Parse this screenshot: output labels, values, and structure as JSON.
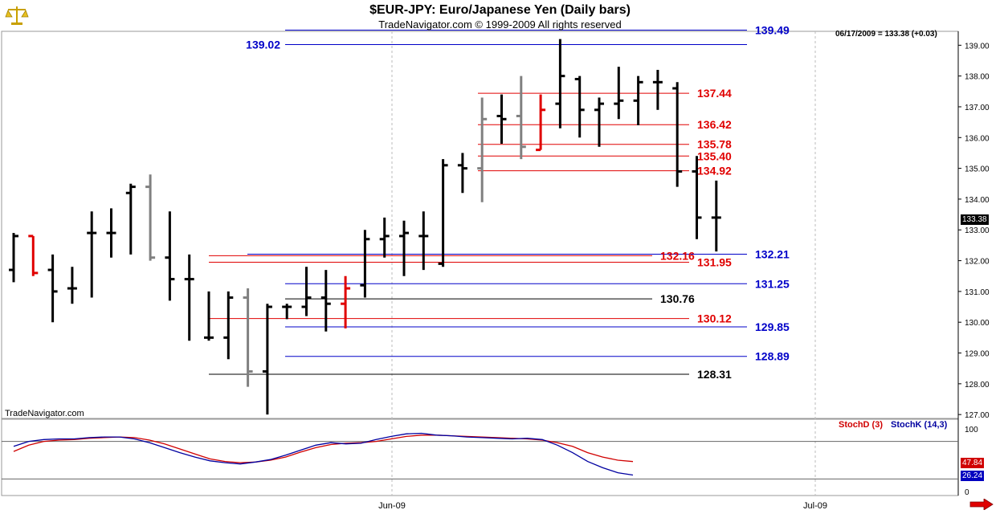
{
  "header": {
    "title": "$EUR-JPY:  Euro/Japanese Yen  (Daily bars)",
    "subtitle": "TradeNavigator.com © 1999-2009 All rights reserved"
  },
  "brand_label": "TradeNavigator.com",
  "last_readout": "06/17/2009 = 133.38 (+0.03)",
  "last_price_tag": "133.38",
  "stoch_d_tag": "47.84",
  "stoch_k_tag": "26.24",
  "legend": {
    "stoch_d": "StochD (3)",
    "stoch_k": "StochK (14,3)"
  },
  "colors": {
    "up_down_bar": "#000000",
    "red_bar": "#e00000",
    "gray_bar": "#808080",
    "blue_level": "#0000c8",
    "red_level": "#e00000",
    "black_level": "#000000",
    "stoch_d": "#d00000",
    "stoch_k": "#0000a0"
  },
  "icons": {
    "logo": "gold-scales-icon",
    "next": "right-arrow-icon"
  },
  "chart_data": [
    {
      "type": "ohlc",
      "ylim": [
        126.9,
        139.4
      ],
      "y_ticks": [
        "127.00",
        "128.00",
        "129.00",
        "130.00",
        "131.00",
        "132.00",
        "133.00",
        "134.00",
        "135.00",
        "136.00",
        "137.00",
        "138.00",
        "139.00"
      ],
      "x_labels": [
        "Jun-09",
        "Jul-09"
      ],
      "grid": "vertical dashed at month starts",
      "bars": [
        {
          "o": 131.7,
          "h": 132.9,
          "l": 131.3,
          "c": 132.8,
          "color": "black"
        },
        {
          "o": 132.8,
          "h": 132.8,
          "l": 131.5,
          "c": 131.6,
          "color": "red"
        },
        {
          "o": 131.7,
          "h": 132.2,
          "l": 130.0,
          "c": 131.0,
          "color": "black"
        },
        {
          "o": 131.1,
          "h": 131.8,
          "l": 130.6,
          "c": 131.1,
          "color": "black"
        },
        {
          "o": 132.9,
          "h": 133.6,
          "l": 130.8,
          "c": 132.9,
          "color": "black"
        },
        {
          "o": 132.9,
          "h": 133.7,
          "l": 132.1,
          "c": 132.9,
          "color": "black"
        },
        {
          "o": 134.2,
          "h": 134.5,
          "l": 132.2,
          "c": 134.4,
          "color": "black"
        },
        {
          "o": 134.4,
          "h": 134.8,
          "l": 132.0,
          "c": 132.1,
          "color": "gray"
        },
        {
          "o": 132.1,
          "h": 133.6,
          "l": 130.7,
          "c": 131.4,
          "color": "black"
        },
        {
          "o": 131.4,
          "h": 132.2,
          "l": 129.4,
          "c": 131.4,
          "color": "black"
        },
        {
          "o": 129.5,
          "h": 131.0,
          "l": 129.4,
          "c": 129.5,
          "color": "black"
        },
        {
          "o": 129.5,
          "h": 131.0,
          "l": 128.8,
          "c": 130.8,
          "color": "black"
        },
        {
          "o": 130.8,
          "h": 131.1,
          "l": 127.9,
          "c": 128.4,
          "color": "gray"
        },
        {
          "o": 128.4,
          "h": 130.6,
          "l": 127.0,
          "c": 130.5,
          "color": "black"
        },
        {
          "o": 130.5,
          "h": 130.6,
          "l": 130.1,
          "c": 130.5,
          "color": "black"
        },
        {
          "o": 130.5,
          "h": 131.8,
          "l": 130.2,
          "c": 130.8,
          "color": "black"
        },
        {
          "o": 130.8,
          "h": 131.7,
          "l": 129.7,
          "c": 130.6,
          "color": "black"
        },
        {
          "o": 130.6,
          "h": 131.5,
          "l": 129.8,
          "c": 131.1,
          "color": "red"
        },
        {
          "o": 131.2,
          "h": 133.0,
          "l": 130.8,
          "c": 132.7,
          "color": "black"
        },
        {
          "o": 132.7,
          "h": 133.4,
          "l": 132.1,
          "c": 132.8,
          "color": "black"
        },
        {
          "o": 132.8,
          "h": 133.3,
          "l": 131.5,
          "c": 132.9,
          "color": "black"
        },
        {
          "o": 132.8,
          "h": 133.6,
          "l": 131.7,
          "c": 132.8,
          "color": "black"
        },
        {
          "o": 131.9,
          "h": 135.3,
          "l": 131.8,
          "c": 135.1,
          "color": "black"
        },
        {
          "o": 135.1,
          "h": 135.5,
          "l": 134.2,
          "c": 135.0,
          "color": "black"
        },
        {
          "o": 135.0,
          "h": 137.3,
          "l": 133.9,
          "c": 136.6,
          "color": "gray"
        },
        {
          "o": 136.7,
          "h": 137.4,
          "l": 135.8,
          "c": 136.6,
          "color": "black"
        },
        {
          "o": 136.7,
          "h": 138.0,
          "l": 135.3,
          "c": 135.7,
          "color": "gray"
        },
        {
          "o": 135.6,
          "h": 137.4,
          "l": 135.6,
          "c": 136.9,
          "color": "red"
        },
        {
          "o": 137.1,
          "h": 139.2,
          "l": 136.3,
          "c": 138.0,
          "color": "black"
        },
        {
          "o": 137.9,
          "h": 138.0,
          "l": 136.0,
          "c": 136.9,
          "color": "black"
        },
        {
          "o": 136.9,
          "h": 137.3,
          "l": 135.7,
          "c": 137.1,
          "color": "black"
        },
        {
          "o": 137.1,
          "h": 138.3,
          "l": 136.6,
          "c": 137.2,
          "color": "black"
        },
        {
          "o": 137.2,
          "h": 138.0,
          "l": 136.4,
          "c": 137.8,
          "color": "black"
        },
        {
          "o": 137.8,
          "h": 138.2,
          "l": 136.9,
          "c": 137.8,
          "color": "black"
        },
        {
          "o": 137.6,
          "h": 137.8,
          "l": 134.4,
          "c": 134.9,
          "color": "black"
        },
        {
          "o": 134.9,
          "h": 135.4,
          "l": 132.7,
          "c": 133.4,
          "color": "black"
        },
        {
          "o": 133.4,
          "h": 134.6,
          "l": 132.3,
          "c": 133.4,
          "color": "black"
        }
      ],
      "levels": [
        {
          "value": 139.49,
          "label": "139.49",
          "color": "blue",
          "label_side": "right"
        },
        {
          "value": 139.02,
          "label": "139.02",
          "color": "blue",
          "label_side": "left"
        },
        {
          "value": 137.44,
          "label": "137.44",
          "color": "red",
          "label_side": "right"
        },
        {
          "value": 136.42,
          "label": "136.42",
          "color": "red",
          "label_side": "right"
        },
        {
          "value": 135.78,
          "label": "135.78",
          "color": "red",
          "label_side": "right"
        },
        {
          "value": 135.4,
          "label": "135.40",
          "color": "red",
          "label_side": "right"
        },
        {
          "value": 134.92,
          "label": "134.92",
          "color": "red",
          "label_side": "right"
        },
        {
          "value": 132.21,
          "label": "132.21",
          "color": "blue",
          "label_side": "right"
        },
        {
          "value": 132.16,
          "label": "132.16",
          "color": "red",
          "label_side": "right"
        },
        {
          "value": 131.95,
          "label": "131.95",
          "color": "red",
          "label_side": "right"
        },
        {
          "value": 131.25,
          "label": "131.25",
          "color": "blue",
          "label_side": "right"
        },
        {
          "value": 130.76,
          "label": "130.76",
          "color": "black",
          "label_side": "right"
        },
        {
          "value": 130.12,
          "label": "130.12",
          "color": "red",
          "label_side": "right"
        },
        {
          "value": 129.85,
          "label": "129.85",
          "color": "blue",
          "label_side": "right"
        },
        {
          "value": 128.89,
          "label": "128.89",
          "color": "blue",
          "label_side": "right"
        },
        {
          "value": 128.31,
          "label": "128.31",
          "color": "black",
          "label_side": "right"
        }
      ]
    },
    {
      "type": "line",
      "title": "",
      "ylim": [
        0,
        100
      ],
      "y_ticks": [
        "100",
        "0"
      ],
      "reference_lines": [
        80,
        20
      ],
      "series": [
        {
          "name": "StochD (3)",
          "color": "#d00000",
          "values": [
            64,
            74,
            80,
            82,
            83,
            85,
            86,
            87,
            86,
            82,
            76,
            68,
            60,
            52,
            48,
            46,
            47,
            50,
            55,
            63,
            70,
            75,
            77,
            78,
            80,
            84,
            88,
            90,
            90,
            89,
            88,
            87,
            86,
            85,
            84,
            82,
            78,
            72,
            62,
            55,
            50,
            47.84
          ]
        },
        {
          "name": "StochK (14,3)",
          "color": "#0000a0",
          "values": [
            72,
            80,
            83,
            84,
            84,
            86,
            87,
            87,
            84,
            78,
            70,
            62,
            55,
            49,
            46,
            44,
            47,
            51,
            58,
            66,
            74,
            78,
            76,
            77,
            83,
            88,
            92,
            93,
            90,
            89,
            87,
            86,
            85,
            84,
            85,
            83,
            74,
            62,
            48,
            38,
            30,
            26.24
          ]
        }
      ]
    }
  ]
}
